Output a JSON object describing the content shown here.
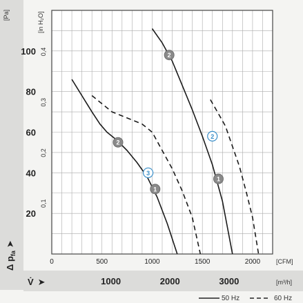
{
  "chart_data": {
    "type": "line",
    "x_axis": {
      "primary_unit": "[CFM]",
      "primary_ticks": [
        "0",
        "500",
        "1000",
        "1500",
        "2000"
      ],
      "primary_tick_values": [
        0,
        500,
        1000,
        1500,
        2000
      ],
      "primary_range": [
        0,
        2200
      ],
      "secondary_unit": "[m³/h]",
      "secondary_ticks": [
        "1000",
        "2000",
        "3000"
      ],
      "secondary_tick_values_cfm": [
        588.6,
        1177.2,
        1765.8
      ],
      "label_symbol": "V̇",
      "arrow": "➤"
    },
    "y_axis": {
      "primary_unit": "[Pa]",
      "primary_ticks": [
        "20",
        "40",
        "60",
        "80",
        "100"
      ],
      "primary_tick_values": [
        20,
        40,
        60,
        80,
        100
      ],
      "primary_range": [
        0,
        120
      ],
      "secondary_unit": "[in H₂O]",
      "secondary_ticks": [
        "0,1",
        "0,2",
        "0,3",
        "0,4"
      ],
      "secondary_tick_values_pa": [
        24.9,
        49.8,
        74.7,
        99.6
      ],
      "label_symbol": "Δ p",
      "label_subscript": "fa",
      "arrow": "➤"
    },
    "grid": true,
    "legend": {
      "placement": "bottom-right",
      "entries": [
        {
          "label": "50 Hz",
          "style": "solid"
        },
        {
          "label": "60 Hz",
          "style": "dashed"
        }
      ]
    },
    "series": [
      {
        "frequency": "50 Hz",
        "style": "solid",
        "points": [
          [
            200,
            86
          ],
          [
            300,
            78
          ],
          [
            400,
            70
          ],
          [
            480,
            64
          ],
          [
            550,
            60
          ],
          [
            650,
            56
          ],
          [
            750,
            51
          ],
          [
            850,
            45
          ],
          [
            950,
            38
          ],
          [
            1050,
            28
          ],
          [
            1150,
            15
          ],
          [
            1250,
            0
          ]
        ]
      },
      {
        "frequency": "60 Hz",
        "style": "dashed",
        "points": [
          [
            400,
            78
          ],
          [
            500,
            74
          ],
          [
            600,
            70
          ],
          [
            750,
            67
          ],
          [
            900,
            64
          ],
          [
            1000,
            60
          ],
          [
            1100,
            51
          ],
          [
            1200,
            42
          ],
          [
            1300,
            31
          ],
          [
            1400,
            18
          ],
          [
            1480,
            0
          ]
        ]
      },
      {
        "frequency": "50 Hz",
        "style": "solid",
        "points": [
          [
            1000,
            111
          ],
          [
            1100,
            104
          ],
          [
            1200,
            95
          ],
          [
            1300,
            83
          ],
          [
            1400,
            71
          ],
          [
            1500,
            58
          ],
          [
            1600,
            44
          ],
          [
            1700,
            26
          ],
          [
            1800,
            0
          ]
        ]
      },
      {
        "frequency": "60 Hz",
        "style": "dashed",
        "points": [
          [
            1580,
            76
          ],
          [
            1650,
            70
          ],
          [
            1730,
            63
          ],
          [
            1800,
            53
          ],
          [
            1870,
            43
          ],
          [
            1940,
            30
          ],
          [
            2000,
            18
          ],
          [
            2060,
            0
          ]
        ]
      }
    ],
    "markers": [
      {
        "label": "1",
        "style": "filled",
        "x": 1030,
        "y": 32
      },
      {
        "label": "2",
        "style": "filled",
        "x": 660,
        "y": 55
      },
      {
        "label": "3",
        "style": "outline",
        "x": 960,
        "y": 40
      },
      {
        "label": "2",
        "style": "filled",
        "x": 1170,
        "y": 98
      },
      {
        "label": "1",
        "style": "filled",
        "x": 1660,
        "y": 37
      },
      {
        "label": "2",
        "style": "outline",
        "x": 1600,
        "y": 58
      }
    ]
  }
}
